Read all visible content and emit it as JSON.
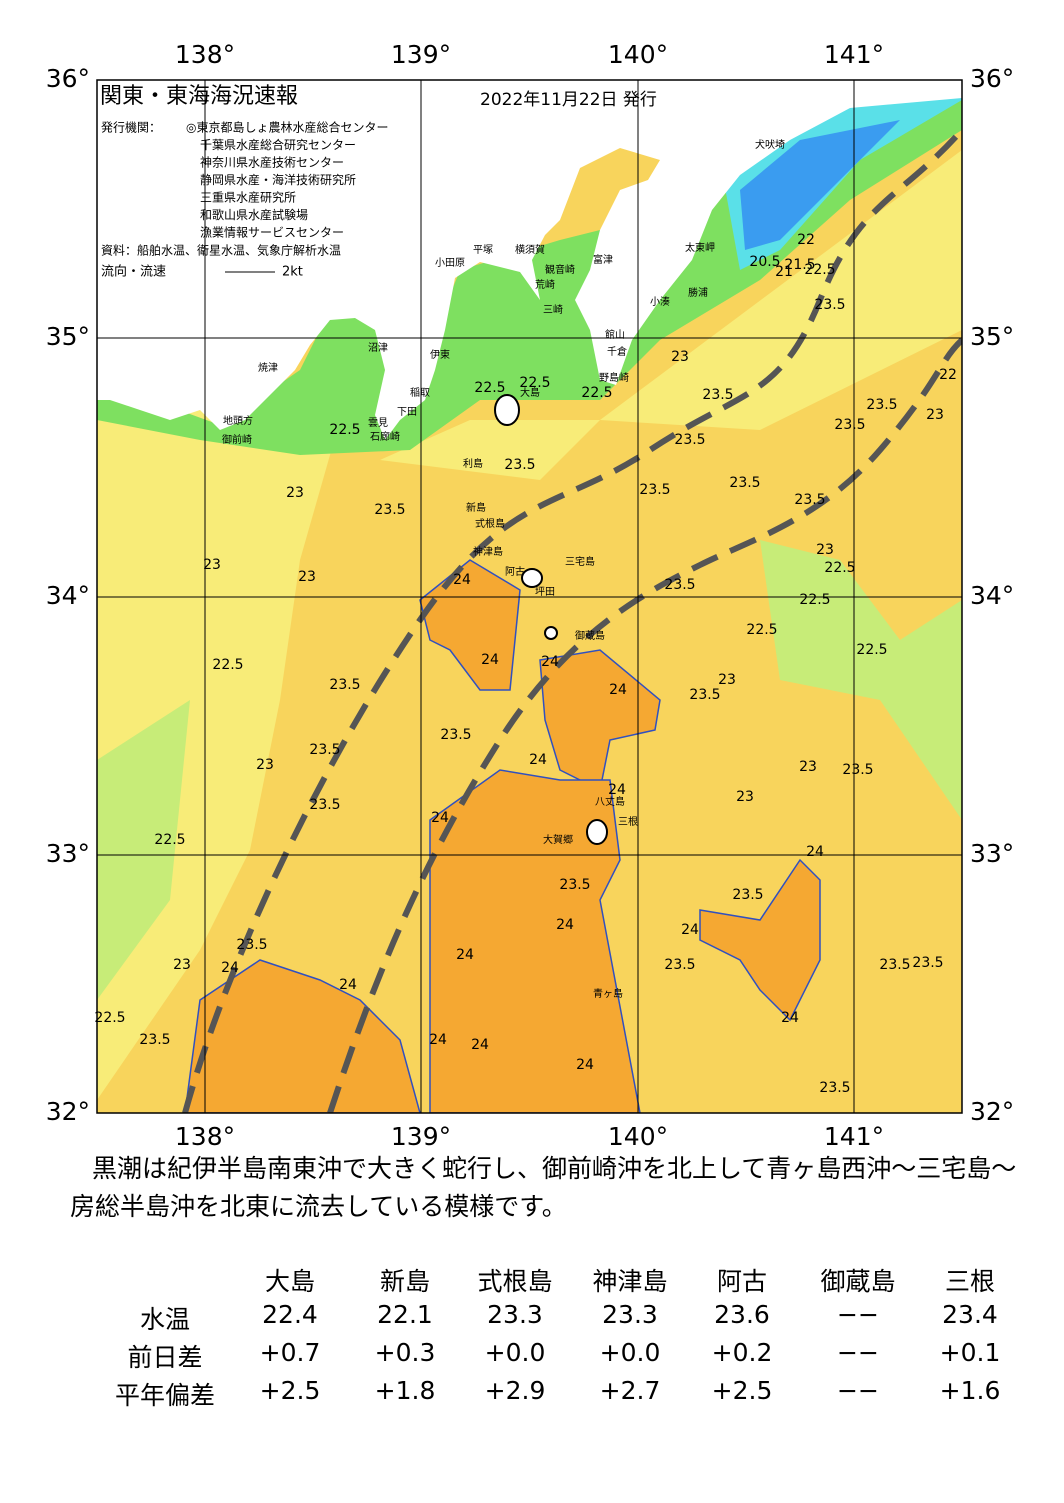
{
  "header": {
    "title": "関東・東海海況速報",
    "date": "2022年11月22日 発行",
    "issuer_label": "発行機関：",
    "issuers": [
      "◎東京都島しょ農林水産総合センター",
      "千葉県水産総合研究センター",
      "神奈川県水産技術センター",
      "静岡県水産・海洋技術研究所",
      "三重県水産研究所",
      "和歌山県水産試験場",
      "漁業情報サービスセンター"
    ],
    "source": "資料：船舶水温、衛星水温、気象庁解析水温",
    "current_label": "流向・流速",
    "current_scale": "2kt"
  },
  "map": {
    "lon_labels": [
      "138°",
      "139°",
      "140°",
      "141°"
    ],
    "lat_labels": [
      "36°",
      "35°",
      "34°",
      "33°",
      "32°"
    ],
    "contour_labels": [
      "22.5",
      "22.5",
      "22.5",
      "22.5",
      "23",
      "23.5",
      "23",
      "23",
      "24",
      "23.5",
      "23.5",
      "23.5",
      "23.5",
      "23",
      "23.5",
      "23.5",
      "23.5",
      "23.5",
      "23",
      "22.5",
      "22.5",
      "23.5",
      "22.5",
      "24",
      "24",
      "24",
      "22.5",
      "23.5",
      "23.5",
      "23.5",
      "23",
      "23",
      "23.5",
      "24",
      "23.5",
      "24",
      "23",
      "23.5",
      "23",
      "24",
      "22.5",
      "24",
      "23.5",
      "23.5",
      "24",
      "24",
      "24",
      "23.5",
      "23.5",
      "23.5",
      "23.5",
      "23",
      "24",
      "22.5",
      "23.5",
      "24",
      "24",
      "24",
      "24",
      "23.5",
      "24",
      "20.5",
      "21",
      "21.5",
      "22",
      "22.5",
      "23.5",
      "22",
      "23",
      "22.5"
    ],
    "place_names": [
      "犬吠埼",
      "太東岬",
      "勝浦",
      "小湊",
      "館山",
      "千倉",
      "野島崎",
      "富津",
      "平塚",
      "横須賀",
      "観音崎",
      "荒崎",
      "三崎",
      "小田原",
      "沼津",
      "伊東",
      "焼津",
      "稲取",
      "下田",
      "石廊崎",
      "雲見",
      "地頭方",
      "御前崎",
      "大島",
      "利島",
      "新島",
      "式根島",
      "神津島",
      "阿古",
      "三宅島",
      "坪田",
      "御蔵島",
      "八丈島",
      "三根",
      "大賀郷",
      "青ヶ島"
    ]
  },
  "description": "黒潮は紀伊半島南東沖で大きく蛇行し、御前崎沖を北上して青ヶ島西沖～三宅島～房総半島沖を北東に流去している模様です。",
  "table": {
    "columns": [
      "大島",
      "新島",
      "式根島",
      "神津島",
      "阿古",
      "御蔵島",
      "三根"
    ],
    "rows": [
      {
        "label": "水温",
        "values": [
          "22.4",
          "22.1",
          "23.3",
          "23.3",
          "23.6",
          "−−",
          "23.4"
        ]
      },
      {
        "label": "前日差",
        "values": [
          "+0.7",
          "+0.3",
          "+0.0",
          "+0.0",
          "+0.2",
          "−−",
          "+0.1"
        ]
      },
      {
        "label": "平年偏差",
        "values": [
          "+2.5",
          "+1.8",
          "+2.9",
          "+2.7",
          "+2.5",
          "−−",
          "+1.6"
        ]
      }
    ]
  }
}
